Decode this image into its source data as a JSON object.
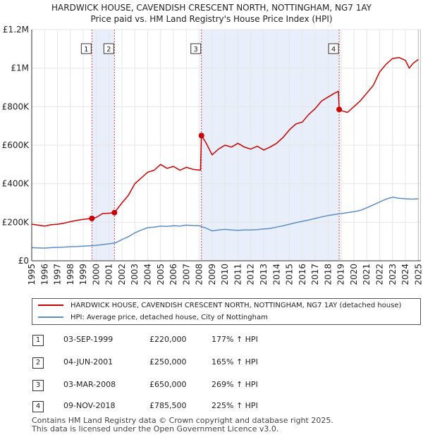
{
  "title_line1": "HARDWICK HOUSE, CAVENDISH CRESCENT NORTH, NOTTINGHAM, NG7 1AY",
  "title_line2": "Price paid vs. HM Land Registry's House Price Index (HPI)",
  "chart_data": {
    "type": "line",
    "xlim": [
      1995,
      2025.2
    ],
    "ylim": [
      0,
      1200000
    ],
    "y_ticks": [
      0,
      200000,
      400000,
      600000,
      800000,
      1000000,
      1200000
    ],
    "y_tick_labels": [
      "£0",
      "£200K",
      "£400K",
      "£600K",
      "£800K",
      "£1M",
      "£1.2M"
    ],
    "x_ticks": [
      1995,
      1996,
      1997,
      1998,
      1999,
      2000,
      2001,
      2002,
      2003,
      2004,
      2005,
      2006,
      2007,
      2008,
      2009,
      2010,
      2011,
      2012,
      2013,
      2014,
      2015,
      2016,
      2017,
      2018,
      2019,
      2020,
      2021,
      2022,
      2023,
      2024,
      2025
    ],
    "x_tick_labels": [
      "1995",
      "1996",
      "1997",
      "1998",
      "1999",
      "2000",
      "2001",
      "2002",
      "2003",
      "2004",
      "2005",
      "2006",
      "2007",
      "2008",
      "2009",
      "2010",
      "2011",
      "2012",
      "2013",
      "2014",
      "2015",
      "2016",
      "2017",
      "2018",
      "2019",
      "2020",
      "2021",
      "2022",
      "2023",
      "2024",
      "2025"
    ],
    "shaded_ranges": [
      [
        1999.67,
        2001.42
      ],
      [
        2008.17,
        2018.86
      ]
    ],
    "series": [
      {
        "name": "HARDWICK HOUSE, CAVENDISH CRESCENT NORTH, NOTTINGHAM, NG7 1AY (detached house)",
        "color": "#cc0000",
        "x": [
          1995,
          1995.5,
          1996,
          1996.5,
          1997,
          1997.5,
          1998,
          1998.5,
          1999,
          1999.67,
          2000,
          2000.5,
          2001,
          2001.42,
          2002,
          2002.5,
          2003,
          2003.5,
          2004,
          2004.5,
          2005,
          2005.5,
          2006,
          2006.5,
          2007,
          2007.5,
          2008.1,
          2008.17,
          2008.5,
          2009,
          2009.5,
          2010,
          2010.5,
          2011,
          2011.5,
          2012,
          2012.5,
          2013,
          2013.5,
          2014,
          2014.5,
          2015,
          2015.5,
          2016,
          2016.5,
          2017,
          2017.5,
          2018,
          2018.5,
          2018.8,
          2018.86,
          2019,
          2019.5,
          2020,
          2020.5,
          2021,
          2021.5,
          2022,
          2022.5,
          2023,
          2023.5,
          2024,
          2024.3,
          2024.6,
          2025
        ],
        "y": [
          190000,
          185000,
          180000,
          187000,
          190000,
          195000,
          203000,
          210000,
          215000,
          220000,
          225000,
          245000,
          247000,
          250000,
          300000,
          340000,
          400000,
          430000,
          460000,
          470000,
          500000,
          480000,
          490000,
          470000,
          485000,
          475000,
          470000,
          650000,
          615000,
          550000,
          580000,
          600000,
          590000,
          610000,
          590000,
          580000,
          595000,
          575000,
          590000,
          610000,
          640000,
          680000,
          710000,
          720000,
          760000,
          790000,
          830000,
          850000,
          870000,
          880000,
          785500,
          780000,
          770000,
          800000,
          830000,
          870000,
          910000,
          980000,
          1020000,
          1050000,
          1055000,
          1040000,
          1000000,
          1025000,
          1045000
        ]
      },
      {
        "name": "HPI: Average price, detached house, City of Nottingham",
        "color": "#5b8ec9",
        "x": [
          1995,
          1995.5,
          1996,
          1996.5,
          1997,
          1997.5,
          1998,
          1998.5,
          1999,
          1999.5,
          2000,
          2000.5,
          2001,
          2001.5,
          2002,
          2002.5,
          2003,
          2003.5,
          2004,
          2004.5,
          2005,
          2005.5,
          2006,
          2006.5,
          2007,
          2007.5,
          2008,
          2008.5,
          2009,
          2009.5,
          2010,
          2010.5,
          2011,
          2011.5,
          2012,
          2012.5,
          2013,
          2013.5,
          2014,
          2014.5,
          2015,
          2015.5,
          2016,
          2016.5,
          2017,
          2017.5,
          2018,
          2018.5,
          2019,
          2019.5,
          2020,
          2020.5,
          2021,
          2021.5,
          2022,
          2022.5,
          2023,
          2023.5,
          2024,
          2024.5,
          2025
        ],
        "y": [
          68000,
          67000,
          66000,
          68000,
          70000,
          71000,
          73000,
          74000,
          76000,
          78000,
          80000,
          84000,
          88000,
          93000,
          110000,
          125000,
          145000,
          160000,
          172000,
          175000,
          180000,
          178000,
          182000,
          180000,
          185000,
          183000,
          182000,
          170000,
          155000,
          160000,
          163000,
          160000,
          158000,
          160000,
          160000,
          162000,
          165000,
          168000,
          175000,
          182000,
          190000,
          198000,
          205000,
          212000,
          220000,
          228000,
          235000,
          240000,
          245000,
          250000,
          255000,
          262000,
          275000,
          290000,
          305000,
          320000,
          330000,
          325000,
          322000,
          320000,
          322000
        ]
      }
    ],
    "transactions": [
      {
        "label": "1",
        "x": 1999.67,
        "y": 220000
      },
      {
        "label": "2",
        "x": 2001.42,
        "y": 250000
      },
      {
        "label": "3",
        "x": 2008.17,
        "y": 650000
      },
      {
        "label": "4",
        "x": 2018.86,
        "y": 785500
      }
    ]
  },
  "legend": {
    "property": "HARDWICK HOUSE, CAVENDISH CRESCENT NORTH, NOTTINGHAM, NG7 1AY (detached house)",
    "hpi": "HPI: Average price, detached house, City of Nottingham"
  },
  "transactions_table": [
    {
      "num": "1",
      "date": "03-SEP-1999",
      "price": "£220,000",
      "hpi": "177% ↑ HPI"
    },
    {
      "num": "2",
      "date": "04-JUN-2001",
      "price": "£250,000",
      "hpi": "165% ↑ HPI"
    },
    {
      "num": "3",
      "date": "03-MAR-2008",
      "price": "£650,000",
      "hpi": "269% ↑ HPI"
    },
    {
      "num": "4",
      "date": "09-NOV-2018",
      "price": "£785,500",
      "hpi": "225% ↑ HPI"
    }
  ],
  "footer_line1": "Contains HM Land Registry data © Crown copyright and database right 2025.",
  "footer_line2": "This data is licensed under the Open Government Licence v3.0."
}
